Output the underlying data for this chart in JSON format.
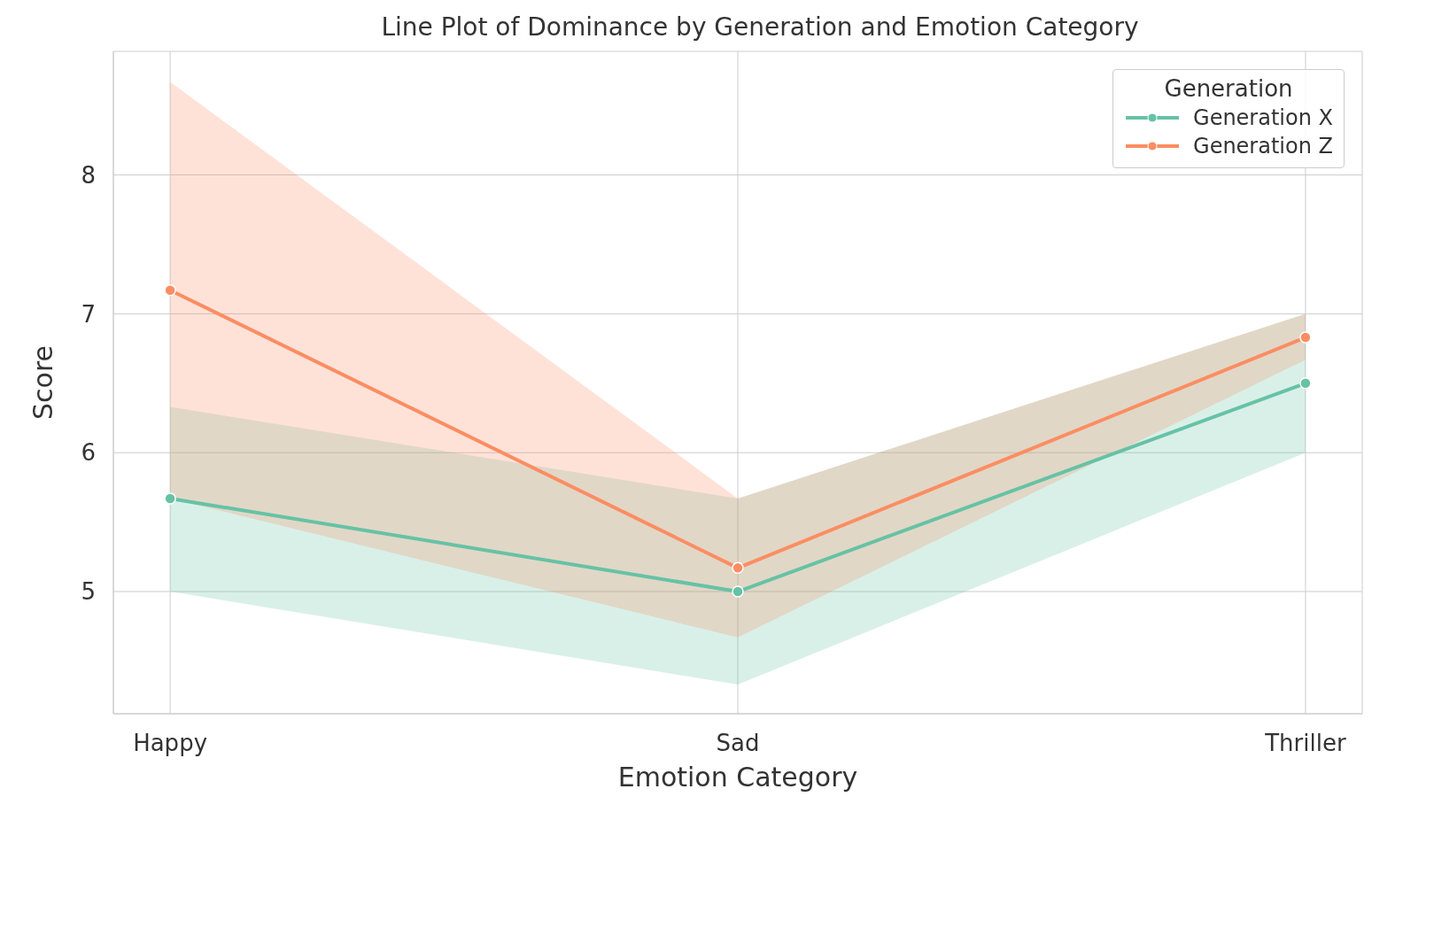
{
  "chart_data": {
    "type": "line",
    "title": "Line Plot of Dominance by Generation and Emotion Category",
    "xlabel": "Emotion Category",
    "ylabel": "Score",
    "legend_title": "Generation",
    "categories": [
      "Happy",
      "Sad",
      "Thriller"
    ],
    "series": [
      {
        "name": "Generation X",
        "color": "#66c2a5",
        "values": [
          5.67,
          5.0,
          6.5
        ],
        "lower": [
          5.0,
          4.33,
          6.0
        ],
        "upper": [
          6.33,
          5.67,
          7.0
        ]
      },
      {
        "name": "Generation Z",
        "color": "#fc8d62",
        "values": [
          7.17,
          5.17,
          6.83
        ],
        "lower": [
          5.67,
          4.67,
          6.67
        ],
        "upper": [
          8.67,
          5.67,
          7.0
        ]
      }
    ],
    "ylim": [
      4.12,
      8.89
    ],
    "yticks": [
      5,
      6,
      7,
      8
    ],
    "grid": true,
    "legend": "top right",
    "marker": "circle",
    "line_style": "solid"
  }
}
